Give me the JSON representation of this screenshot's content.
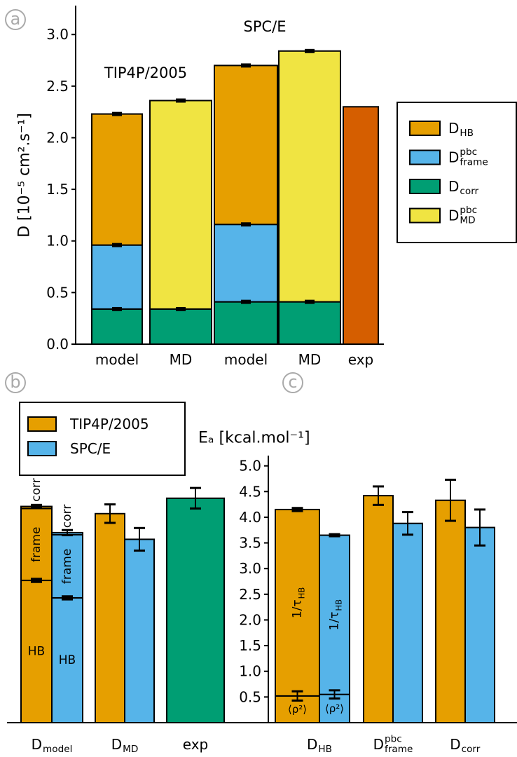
{
  "panel_labels": [
    "a",
    "b",
    "c"
  ],
  "chart_data": [
    {
      "type": "bar",
      "stacked": true,
      "ylabel": "D [10⁻⁵ cm².s⁻¹]",
      "annotations": [
        "SPC/E",
        "TIP4P/2005"
      ],
      "ylim": [
        0,
        3.28
      ],
      "yticks": [
        {
          "value": 0,
          "label": "0.0"
        },
        0.5,
        {
          "value": 1,
          "label": "1.0"
        },
        1.5,
        {
          "value": 2,
          "label": "2.0"
        },
        2.5,
        {
          "value": 3,
          "label": "3.0"
        }
      ],
      "categories": [
        "model",
        "MD",
        "model",
        "MD",
        "exp"
      ],
      "legend_position": "right",
      "legend": [
        {
          "text": "D",
          "sub": "HB",
          "color": "#E69F00"
        },
        {
          "text": "D",
          "sup": "pbc",
          "sub": "frame",
          "color": "#56B4E9"
        },
        {
          "text": "D",
          "sub": "corr",
          "color": "#009E73"
        },
        {
          "text": "D",
          "sup": "pbc",
          "sub": "MD",
          "color": "#F0E442"
        }
      ],
      "bars": [
        {
          "category": 0,
          "segments": [
            {
              "value": 0.34,
              "error": 0.01,
              "color": "#009E73"
            },
            {
              "value": 0.62,
              "error": 0.01,
              "color": "#56B4E9"
            },
            {
              "value": 1.27,
              "error": 0.01,
              "color": "#E69F00"
            }
          ]
        },
        {
          "category": 1,
          "segments": [
            {
              "value": 0.34,
              "error": 0.01,
              "color": "#009E73"
            },
            {
              "value": 2.02,
              "error": 0.01,
              "color": "#F0E442"
            }
          ]
        },
        {
          "category": 2,
          "segments": [
            {
              "value": 0.41,
              "error": 0.01,
              "color": "#009E73"
            },
            {
              "value": 0.75,
              "error": 0.01,
              "color": "#56B4E9"
            },
            {
              "value": 1.54,
              "error": 0.01,
              "color": "#E69F00"
            }
          ]
        },
        {
          "category": 3,
          "segments": [
            {
              "value": 0.41,
              "error": 0.01,
              "color": "#009E73"
            },
            {
              "value": 2.43,
              "error": 0.01,
              "color": "#F0E442"
            }
          ]
        },
        {
          "category": 4,
          "segments": [
            {
              "value": 2.3,
              "color": "#D55E00"
            }
          ]
        }
      ]
    },
    {
      "type": "bar",
      "stacked": true,
      "yaxis": false,
      "ylim": [
        0,
        5.2
      ],
      "categories": [
        {
          "text": "D",
          "sub": "model"
        },
        {
          "text": "D",
          "sub": "MD"
        },
        {
          "text": "exp"
        }
      ],
      "legend_position": "upper left",
      "legend": [
        {
          "text": "TIP4P/2005",
          "color": "#E69F00"
        },
        {
          "text": "SPC/E",
          "color": "#56B4E9"
        }
      ],
      "bars": [
        {
          "category": 0,
          "series": 0,
          "segments": [
            {
              "value": 2.77,
              "label": "HB",
              "error": 0.03
            },
            {
              "value": 1.4,
              "label": "frame",
              "rotated": true
            },
            {
              "value": 0.04,
              "label": "corr",
              "rotated": true,
              "error": 0.03
            }
          ]
        },
        {
          "category": 0,
          "series": 1,
          "segments": [
            {
              "value": 2.43,
              "label": "HB",
              "error": 0.03
            },
            {
              "value": 1.23,
              "label": "frame",
              "rotated": true
            },
            {
              "value": 0.04,
              "label": "corr",
              "rotated": true,
              "error": 0.05
            }
          ]
        },
        {
          "category": 1,
          "series": 0,
          "segments": [
            {
              "value": 4.07,
              "error": 0.18
            }
          ]
        },
        {
          "category": 1,
          "series": 1,
          "segments": [
            {
              "value": 3.57,
              "error": 0.22
            }
          ]
        },
        {
          "category": 2,
          "color": "#009E73",
          "segments": [
            {
              "value": 4.37,
              "error": 0.2
            }
          ]
        }
      ]
    },
    {
      "type": "bar",
      "stacked": true,
      "yaxis": true,
      "ylabel": "Eₐ [kcal.mol⁻¹]",
      "ylim": [
        0,
        5.2
      ],
      "yticks": [
        0.5,
        {
          "value": 1,
          "label": "1.0"
        },
        1.5,
        {
          "value": 2,
          "label": "2.0"
        },
        2.5,
        {
          "value": 3,
          "label": "3.0"
        },
        3.5,
        {
          "value": 4,
          "label": "4.0"
        },
        4.5,
        {
          "value": 5,
          "label": "5.0"
        }
      ],
      "categories": [
        {
          "text": "D",
          "sub": "HB"
        },
        {
          "text": "D",
          "sup": "pbc",
          "sub": "frame"
        },
        {
          "text": "D",
          "sub": "corr"
        }
      ],
      "colors": [
        "#E69F00",
        "#56B4E9"
      ],
      "bars": [
        {
          "category": 0,
          "series": 0,
          "segments": [
            {
              "value": 0.52,
              "label": "⟨ρ²⟩",
              "error": 0.09
            },
            {
              "value": 3.63,
              "label": {
                "text": "1/τ",
                "sub": "HB"
              },
              "rotated": true,
              "error": 0.03
            }
          ]
        },
        {
          "category": 0,
          "series": 1,
          "segments": [
            {
              "value": 0.55,
              "label": "⟨ρ²⟩",
              "error": 0.08
            },
            {
              "value": 3.1,
              "label": {
                "text": "1/τ",
                "sub": "HB"
              },
              "rotated": true,
              "error": 0.02
            }
          ]
        },
        {
          "category": 1,
          "series": 0,
          "segments": [
            {
              "value": 4.42,
              "error": 0.18
            }
          ]
        },
        {
          "category": 1,
          "series": 1,
          "segments": [
            {
              "value": 3.88,
              "error": 0.22
            }
          ]
        },
        {
          "category": 2,
          "series": 0,
          "segments": [
            {
              "value": 4.33,
              "error": 0.4
            }
          ]
        },
        {
          "category": 2,
          "series": 1,
          "segments": [
            {
              "value": 3.8,
              "error": 0.35
            }
          ]
        }
      ]
    }
  ]
}
